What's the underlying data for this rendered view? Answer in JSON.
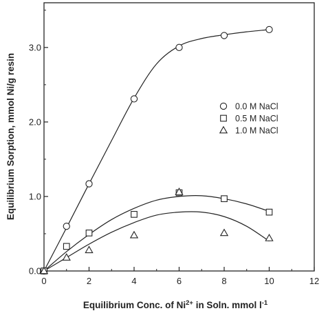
{
  "chart_data": {
    "type": "scatter",
    "xlabel": "Equilibrium Conc. of Ni",
    "xlabel_superscript": "2+",
    "xlabel_tail": " in Soln. mmol l",
    "xlabel_tail_superscript": "-1",
    "ylabel": "Equilibrium Sorption, mmol Ni/g resin",
    "xlim": [
      0,
      12
    ],
    "ylim": [
      0,
      3.6
    ],
    "xticks": [
      "0",
      "2",
      "4",
      "6",
      "8",
      "10",
      "12"
    ],
    "yticks": [
      "0.0",
      "1.0",
      "2.0",
      "3.0"
    ],
    "grid": false,
    "legend_position": "right-middle",
    "series": [
      {
        "name": "0.0 M NaCl",
        "marker": "circle",
        "x": [
          0,
          1,
          2,
          4,
          6,
          8,
          10
        ],
        "y": [
          0.0,
          0.6,
          1.17,
          2.31,
          3.0,
          3.16,
          3.24
        ],
        "fit": [
          [
            0,
            0
          ],
          [
            1,
            0.58
          ],
          [
            2,
            1.17
          ],
          [
            3,
            1.75
          ],
          [
            4,
            2.32
          ],
          [
            5,
            2.78
          ],
          [
            6,
            3.02
          ],
          [
            7,
            3.12
          ],
          [
            8,
            3.17
          ],
          [
            9,
            3.21
          ],
          [
            10,
            3.24
          ]
        ]
      },
      {
        "name": "0.5 M NaCl",
        "marker": "square",
        "x": [
          0,
          1,
          2,
          4,
          6,
          8,
          10
        ],
        "y": [
          0.0,
          0.33,
          0.51,
          0.76,
          1.05,
          0.97,
          0.79
        ],
        "fit": [
          [
            0,
            0
          ],
          [
            1,
            0.26
          ],
          [
            2,
            0.49
          ],
          [
            3,
            0.69
          ],
          [
            4,
            0.84
          ],
          [
            5,
            0.95
          ],
          [
            6,
            1.0
          ],
          [
            7,
            1.01
          ],
          [
            8,
            0.97
          ],
          [
            9,
            0.9
          ],
          [
            10,
            0.8
          ]
        ]
      },
      {
        "name": "1.0 M NaCl",
        "marker": "triangle",
        "x": [
          0,
          1,
          2,
          4,
          6,
          8,
          10
        ],
        "y": [
          0.0,
          0.18,
          0.28,
          0.48,
          1.06,
          0.51,
          0.44
        ],
        "fit": [
          [
            0,
            0
          ],
          [
            1,
            0.18
          ],
          [
            2,
            0.36
          ],
          [
            3,
            0.52
          ],
          [
            4,
            0.65
          ],
          [
            5,
            0.75
          ],
          [
            6,
            0.79
          ],
          [
            7,
            0.79
          ],
          [
            8,
            0.73
          ],
          [
            9,
            0.6
          ],
          [
            10,
            0.4
          ]
        ]
      }
    ]
  }
}
